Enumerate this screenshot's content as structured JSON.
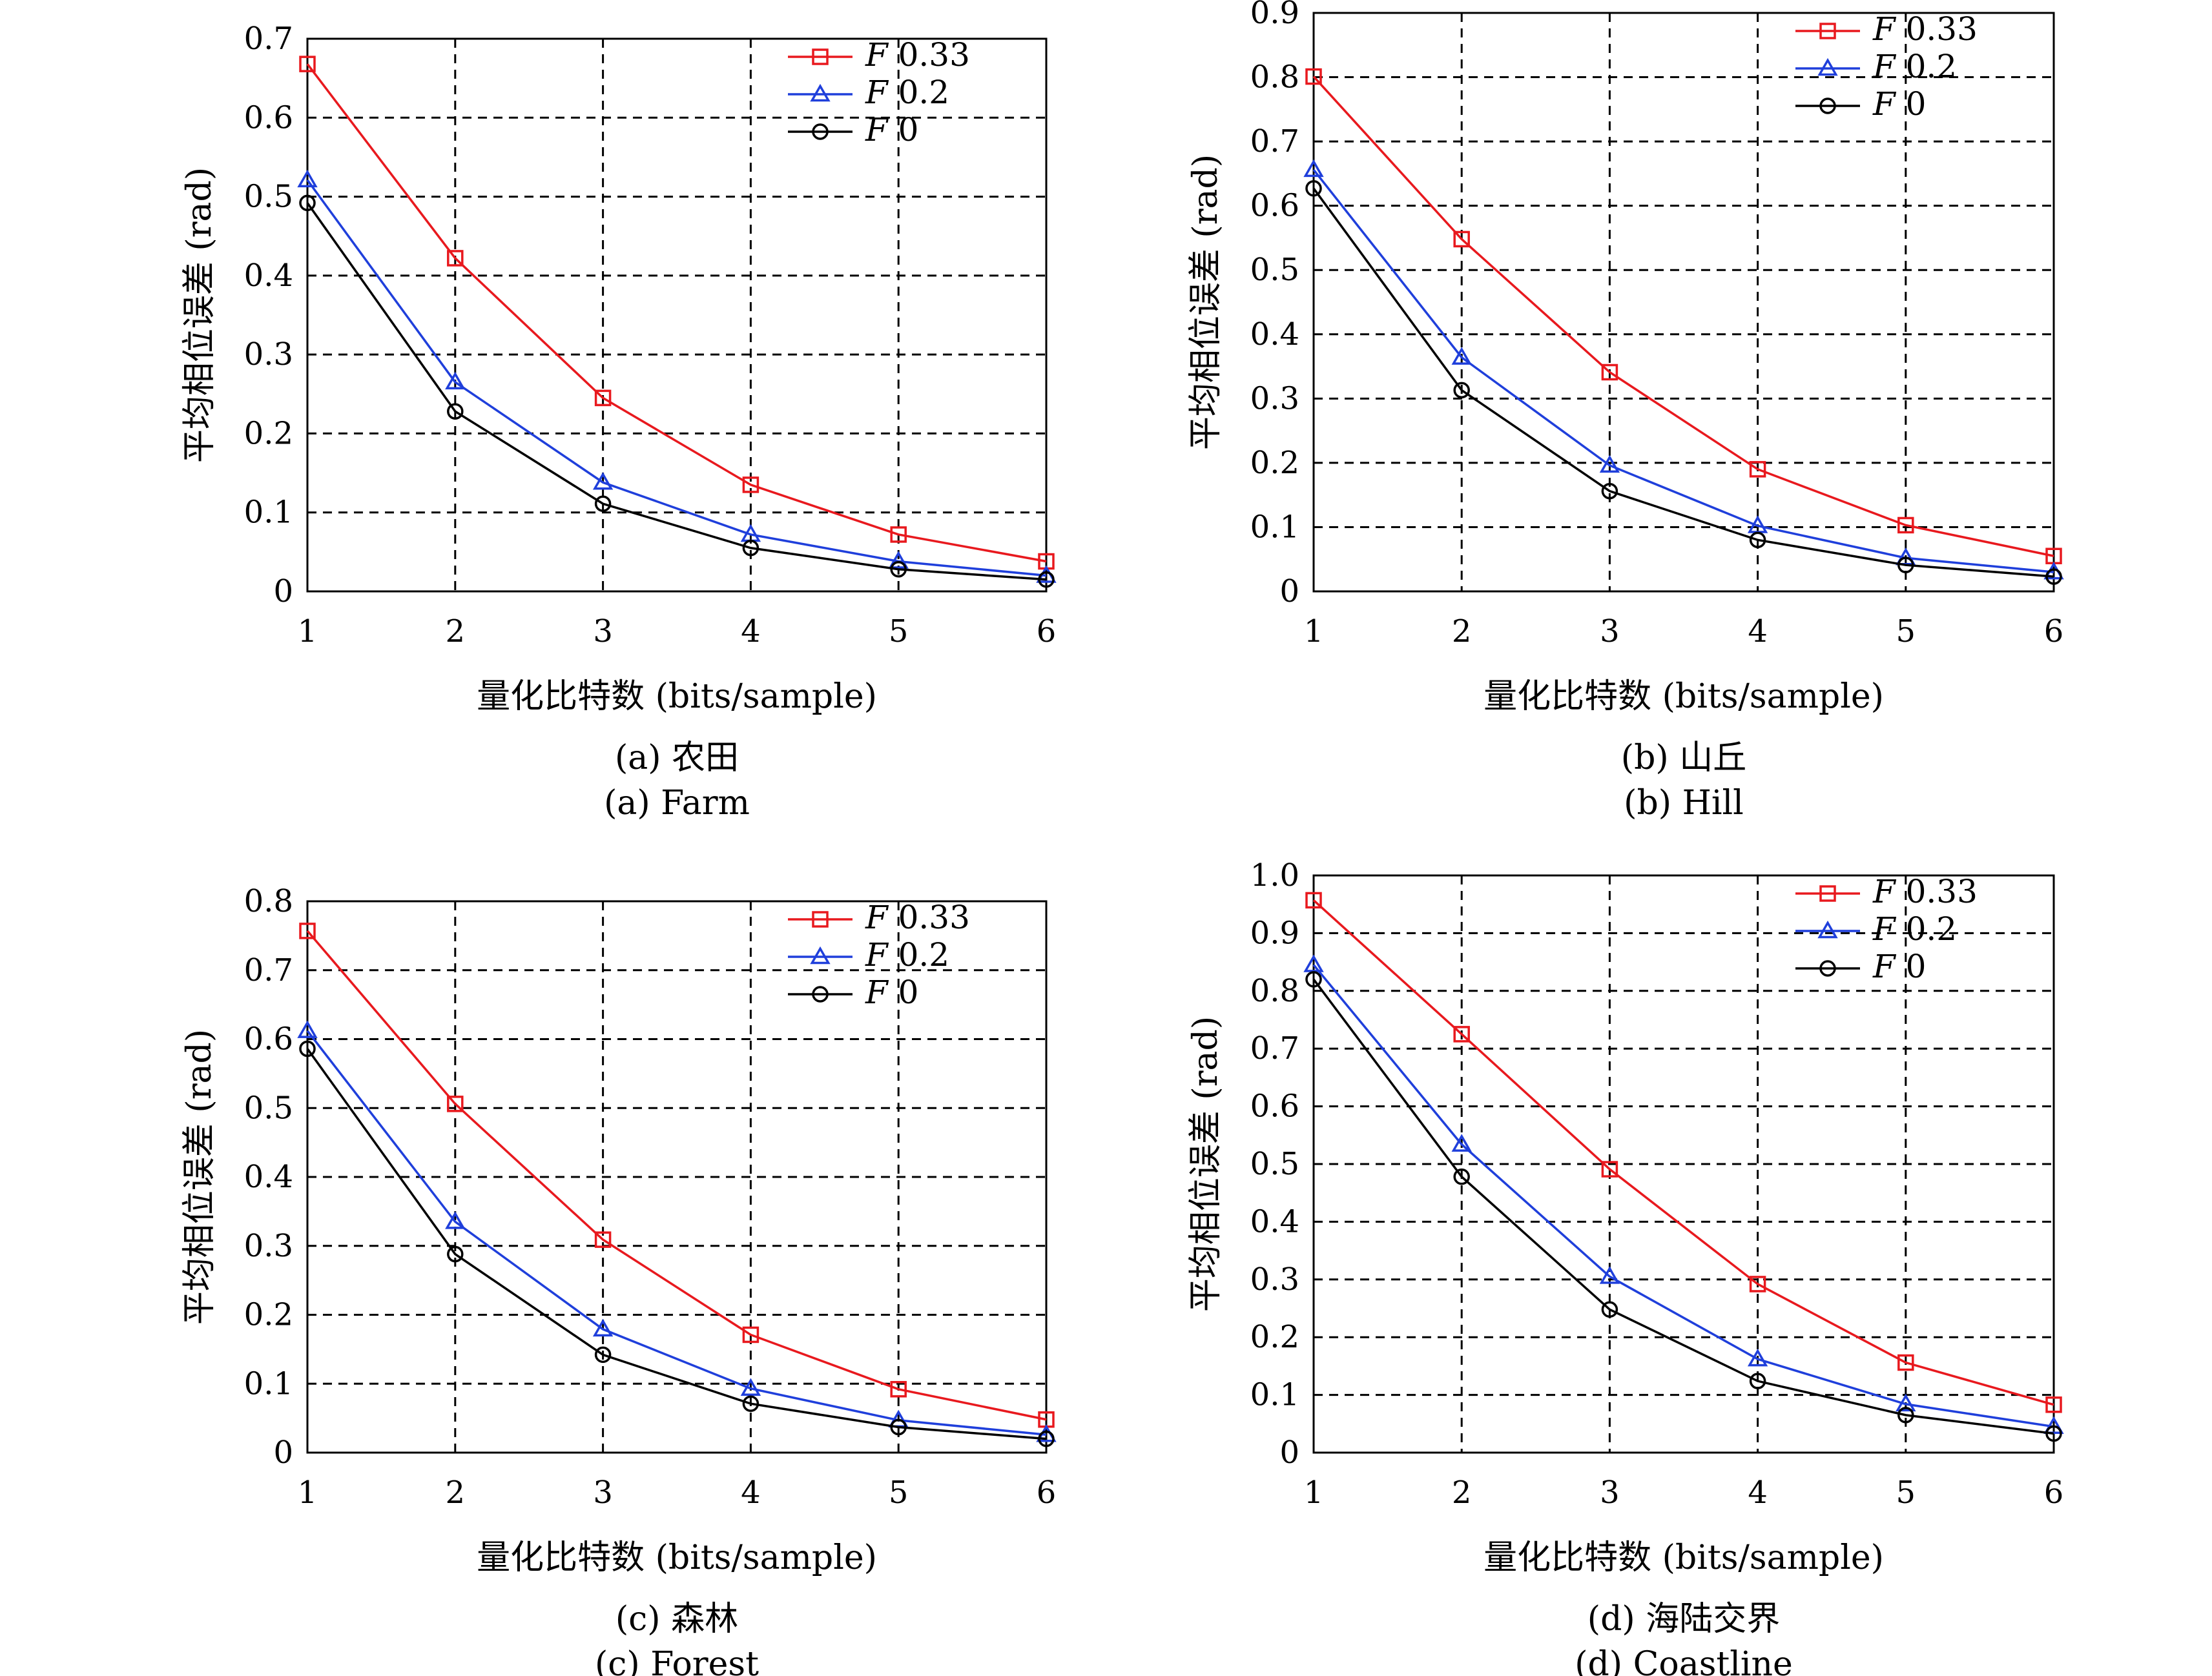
{
  "colors": {
    "F033": "#e8191e",
    "F02": "#1f3fdb",
    "F0": "#000000"
  },
  "charts": [
    {
      "caption_cn": "(a) 农田",
      "caption_en": "(a) Farm",
      "ylabel": "平均相位误差 (rad)",
      "xlabel": "量化比特数 (bits/sample)"
    },
    {
      "caption_cn": "(b) 山丘",
      "caption_en": "(b) Hill",
      "ylabel": "平均相位误差 (rad)",
      "xlabel": "量化比特数 (bits/sample)"
    },
    {
      "caption_cn": "(c) 森林",
      "caption_en": "(c) Forest",
      "ylabel": "平均相位误差 (rad)",
      "xlabel": "量化比特数 (bits/sample)"
    },
    {
      "caption_cn": "(d) 海陆交界",
      "caption_en": "(d) Coastline",
      "ylabel": "平均相位误差 (rad)",
      "xlabel": "量化比特数 (bits/sample)"
    }
  ],
  "chart_data": [
    {
      "type": "line",
      "x": [
        1,
        2,
        3,
        4,
        5,
        6
      ],
      "xlim": [
        1,
        6
      ],
      "ylim": [
        0,
        0.7
      ],
      "yticks": [
        "0",
        "0.1",
        "0.2",
        "0.3",
        "0.4",
        "0.5",
        "0.6",
        "0.7"
      ],
      "xticks": [
        "1",
        "2",
        "3",
        "4",
        "5",
        "6"
      ],
      "grid": true,
      "legend": "top-right",
      "series": [
        {
          "name": "F 0.33",
          "color": "#e8191e",
          "marker": "square",
          "values": [
            0.668,
            0.422,
            0.245,
            0.135,
            0.072,
            0.038
          ]
        },
        {
          "name": "F 0.2",
          "color": "#1f3fdb",
          "marker": "triangle",
          "values": [
            0.521,
            0.265,
            0.138,
            0.072,
            0.038,
            0.02
          ]
        },
        {
          "name": "F 0",
          "color": "#000000",
          "marker": "circle",
          "values": [
            0.492,
            0.228,
            0.111,
            0.055,
            0.028,
            0.015
          ]
        }
      ]
    },
    {
      "type": "line",
      "x": [
        1,
        2,
        3,
        4,
        5,
        6
      ],
      "xlim": [
        1,
        6
      ],
      "ylim": [
        0,
        0.9
      ],
      "yticks": [
        "0",
        "0.1",
        "0.2",
        "0.3",
        "0.4",
        "0.5",
        "0.6",
        "0.7",
        "0.8",
        "0.9"
      ],
      "xticks": [
        "1",
        "2",
        "3",
        "4",
        "5",
        "6"
      ],
      "grid": true,
      "legend": "top-right",
      "series": [
        {
          "name": "F 0.33",
          "color": "#e8191e",
          "marker": "square",
          "values": [
            0.801,
            0.548,
            0.341,
            0.19,
            0.103,
            0.055
          ]
        },
        {
          "name": "F 0.2",
          "color": "#1f3fdb",
          "marker": "triangle",
          "values": [
            0.656,
            0.364,
            0.196,
            0.102,
            0.052,
            0.03
          ]
        },
        {
          "name": "F 0",
          "color": "#000000",
          "marker": "circle",
          "values": [
            0.627,
            0.313,
            0.156,
            0.08,
            0.041,
            0.023
          ]
        }
      ]
    },
    {
      "type": "line",
      "x": [
        1,
        2,
        3,
        4,
        5,
        6
      ],
      "xlim": [
        1,
        6
      ],
      "ylim": [
        0,
        0.8
      ],
      "yticks": [
        "0",
        "0.1",
        "0.2",
        "0.3",
        "0.4",
        "0.5",
        "0.6",
        "0.7",
        "0.8"
      ],
      "xticks": [
        "1",
        "2",
        "3",
        "4",
        "5",
        "6"
      ],
      "grid": true,
      "legend": "top-right",
      "series": [
        {
          "name": "F 0.33",
          "color": "#e8191e",
          "marker": "square",
          "values": [
            0.757,
            0.506,
            0.309,
            0.171,
            0.092,
            0.048
          ]
        },
        {
          "name": "F 0.2",
          "color": "#1f3fdb",
          "marker": "triangle",
          "values": [
            0.612,
            0.335,
            0.179,
            0.093,
            0.047,
            0.026
          ]
        },
        {
          "name": "F 0",
          "color": "#000000",
          "marker": "circle",
          "values": [
            0.586,
            0.288,
            0.142,
            0.071,
            0.037,
            0.02
          ]
        }
      ]
    },
    {
      "type": "line",
      "x": [
        1,
        2,
        3,
        4,
        5,
        6
      ],
      "xlim": [
        1,
        6
      ],
      "ylim": [
        0,
        1.0
      ],
      "yticks": [
        "0",
        "0.1",
        "0.2",
        "0.3",
        "0.4",
        "0.5",
        "0.6",
        "0.7",
        "0.8",
        "0.9",
        "1.0"
      ],
      "xticks": [
        "1",
        "2",
        "3",
        "4",
        "5",
        "6"
      ],
      "grid": true,
      "legend": "top-right",
      "series": [
        {
          "name": "F 0.33",
          "color": "#e8191e",
          "marker": "square",
          "values": [
            0.957,
            0.725,
            0.491,
            0.292,
            0.156,
            0.083
          ]
        },
        {
          "name": "F 0.2",
          "color": "#1f3fdb",
          "marker": "triangle",
          "values": [
            0.845,
            0.534,
            0.305,
            0.162,
            0.084,
            0.045
          ]
        },
        {
          "name": "F 0",
          "color": "#000000",
          "marker": "circle",
          "values": [
            0.82,
            0.478,
            0.248,
            0.124,
            0.065,
            0.033
          ]
        }
      ]
    }
  ]
}
